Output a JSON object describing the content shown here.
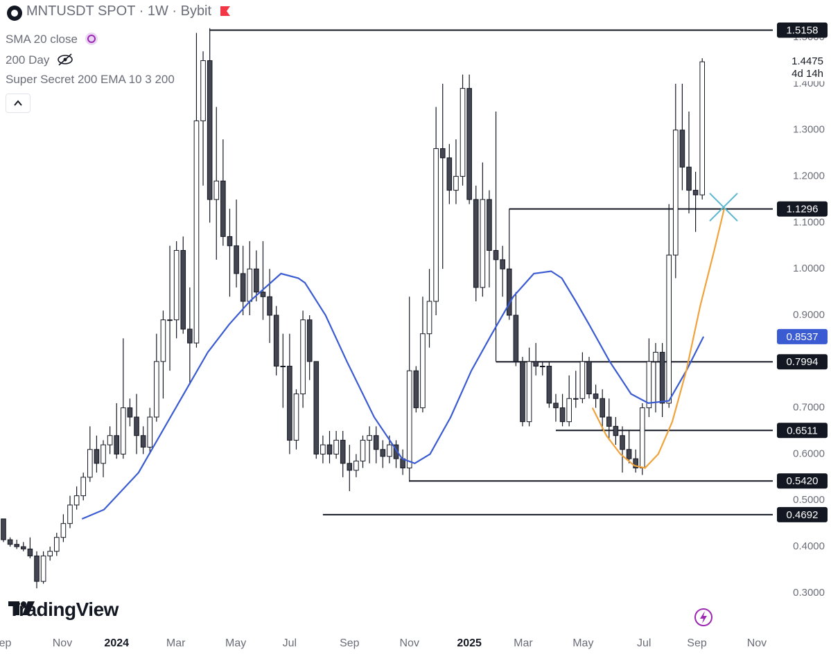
{
  "header": {
    "symbol": "MNTUSDT SPOT · 1W · Bybit",
    "indicators": [
      "SMA 20 close",
      "200 Day",
      "Super Secret 200 EMA 10 3 200"
    ],
    "logo": "TradingView"
  },
  "chart_data": {
    "type": "candlestick",
    "open": [
      0.46,
      0.415,
      0.405,
      0.4,
      0.395,
      0.38,
      0.325,
      0.38,
      0.39,
      0.42,
      0.45,
      0.49,
      0.51,
      0.55,
      0.61,
      0.58,
      0.62,
      0.64,
      0.6,
      0.7,
      0.68,
      0.64,
      0.615,
      0.68,
      0.8,
      0.89,
      0.89,
      1.04,
      0.87,
      0.84,
      1.32,
      1.45,
      1.15,
      1.19,
      1.07,
      1.05,
      0.99,
      0.93,
      1.0,
      0.95,
      0.94,
      0.9,
      0.79,
      0.79,
      0.63,
      0.73,
      0.89,
      0.8,
      0.6,
      0.62,
      0.6,
      0.63,
      0.58,
      0.565,
      0.585,
      0.63,
      0.64,
      0.61,
      0.595,
      0.62,
      0.59,
      0.57,
      0.78,
      0.7,
      0.86,
      0.93,
      1.26,
      1.24,
      1.17,
      1.2,
      1.39,
      1.15,
      0.96,
      1.15,
      1.04,
      1.02,
      1.0,
      0.9,
      0.8,
      0.67,
      0.8,
      0.79,
      0.79,
      0.71,
      0.7,
      0.67,
      0.72,
      0.72,
      0.8,
      0.73,
      0.72,
      0.68,
      0.66,
      0.64,
      0.61,
      0.59,
      0.57,
      0.7,
      0.8,
      0.82,
      0.71,
      1.03,
      1.3,
      1.22,
      1.17,
      1.16
    ],
    "high": [
      0.46,
      0.42,
      0.415,
      0.41,
      0.42,
      0.39,
      0.39,
      0.4,
      0.43,
      0.47,
      0.51,
      0.53,
      0.56,
      0.66,
      0.64,
      0.63,
      0.66,
      0.71,
      0.85,
      0.72,
      0.73,
      0.66,
      0.7,
      0.86,
      0.91,
      1.05,
      1.06,
      1.07,
      0.96,
      1.51,
      1.47,
      1.52,
      1.35,
      1.28,
      1.13,
      1.15,
      1.05,
      1.06,
      1.04,
      1.06,
      1.0,
      0.92,
      0.86,
      0.86,
      0.74,
      0.91,
      0.9,
      0.8,
      0.64,
      0.65,
      0.65,
      0.65,
      0.62,
      0.6,
      0.64,
      0.66,
      0.66,
      0.63,
      0.64,
      0.63,
      0.61,
      0.94,
      0.79,
      0.94,
      1.0,
      1.35,
      1.4,
      1.27,
      1.28,
      1.42,
      1.42,
      1.18,
      1.23,
      1.17,
      1.34,
      1.05,
      1.13,
      0.95,
      0.81,
      0.83,
      0.84,
      0.8,
      0.8,
      0.73,
      0.73,
      0.77,
      0.78,
      0.82,
      0.81,
      0.75,
      0.74,
      0.72,
      0.68,
      0.66,
      0.65,
      0.61,
      0.71,
      0.85,
      0.84,
      0.84,
      1.14,
      1.4,
      1.4,
      1.34,
      1.21,
      1.455
    ],
    "low": [
      0.41,
      0.4,
      0.395,
      0.39,
      0.375,
      0.31,
      0.32,
      0.37,
      0.38,
      0.41,
      0.44,
      0.48,
      0.5,
      0.54,
      0.56,
      0.55,
      0.6,
      0.59,
      0.59,
      0.66,
      0.6,
      0.6,
      0.6,
      0.67,
      0.72,
      0.78,
      0.85,
      0.86,
      0.75,
      0.83,
      1.18,
      1.1,
      1.02,
      1.05,
      0.94,
      0.96,
      0.9,
      0.9,
      0.93,
      0.89,
      0.84,
      0.77,
      0.7,
      0.6,
      0.61,
      0.7,
      0.76,
      0.59,
      0.58,
      0.58,
      0.59,
      0.55,
      0.52,
      0.55,
      0.57,
      0.58,
      0.58,
      0.57,
      0.58,
      0.57,
      0.555,
      0.54,
      0.69,
      0.69,
      0.83,
      0.9,
      1.0,
      1.14,
      1.14,
      1.18,
      1.14,
      0.93,
      0.94,
      0.96,
      0.8,
      0.94,
      0.89,
      0.79,
      0.66,
      0.66,
      0.77,
      0.77,
      0.7,
      0.67,
      0.66,
      0.66,
      0.7,
      0.71,
      0.72,
      0.7,
      0.65,
      0.63,
      0.62,
      0.56,
      0.58,
      0.56,
      0.555,
      0.68,
      0.69,
      0.68,
      0.7,
      0.98,
      1.17,
      1.12,
      1.08,
      1.15
    ],
    "close": [
      0.415,
      0.405,
      0.4,
      0.395,
      0.38,
      0.325,
      0.38,
      0.39,
      0.42,
      0.45,
      0.49,
      0.51,
      0.55,
      0.61,
      0.58,
      0.62,
      0.64,
      0.6,
      0.7,
      0.68,
      0.64,
      0.615,
      0.68,
      0.8,
      0.89,
      0.89,
      1.04,
      0.87,
      0.84,
      1.32,
      1.45,
      1.15,
      1.19,
      1.07,
      1.05,
      0.99,
      0.93,
      1.0,
      0.95,
      0.94,
      0.9,
      0.79,
      0.79,
      0.63,
      0.73,
      0.89,
      0.8,
      0.6,
      0.62,
      0.6,
      0.63,
      0.58,
      0.565,
      0.585,
      0.63,
      0.64,
      0.61,
      0.595,
      0.62,
      0.59,
      0.57,
      0.78,
      0.7,
      0.86,
      0.93,
      1.26,
      1.24,
      1.17,
      1.2,
      1.39,
      1.15,
      0.96,
      1.15,
      1.04,
      1.02,
      1.0,
      0.9,
      0.8,
      0.67,
      0.8,
      0.79,
      0.79,
      0.71,
      0.7,
      0.67,
      0.72,
      0.72,
      0.8,
      0.73,
      0.72,
      0.68,
      0.66,
      0.64,
      0.61,
      0.59,
      0.57,
      0.7,
      0.8,
      0.82,
      0.71,
      1.03,
      1.3,
      1.22,
      1.17,
      1.16,
      1.4475
    ],
    "up_color": "#ffffff",
    "down_color": "#434651",
    "border_color": "#131722",
    "countdown": "4d 14h",
    "lines": [
      {
        "color": "#3a5bd1",
        "x": [
          11.8,
          15.1,
          20.3,
          25.5,
          30.7,
          33.9,
          37,
          41.7,
          44.3,
          45.3,
          48.4,
          51.6,
          55.7,
          59.9,
          61.8,
          64.1,
          67.2,
          70.3,
          73.4,
          76.6,
          79.7,
          82.3,
          83.9,
          86,
          88,
          91.1,
          94.3,
          96.9,
          100,
          102.6,
          105.2
        ],
        "values": [
          0.46,
          0.48,
          0.56,
          0.69,
          0.82,
          0.88,
          0.93,
          0.99,
          0.98,
          0.97,
          0.9,
          0.8,
          0.68,
          0.59,
          0.58,
          0.6,
          0.68,
          0.78,
          0.86,
          0.94,
          0.99,
          0.995,
          0.98,
          0.93,
          0.88,
          0.8,
          0.73,
          0.71,
          0.715,
          0.78,
          0.8537
        ]
      },
      {
        "color": "#f0a23b",
        "x": [
          88.5,
          90.6,
          92.7,
          94.8,
          96.4,
          98.4,
          100.5,
          102.6,
          104.7,
          106.8,
          108.3
        ],
        "values": [
          0.7,
          0.64,
          0.6,
          0.575,
          0.57,
          0.6,
          0.67,
          0.78,
          0.92,
          1.04,
          1.13
        ]
      }
    ],
    "levels": [
      {
        "value": 1.5158,
        "from": 31
      },
      {
        "value": 1.1296,
        "from": 76
      },
      {
        "value": 0.7994,
        "from": 74
      },
      {
        "value": 0.6511,
        "from": 83
      },
      {
        "value": {
          "value": 0.542,
          "label": "0.5420"
        },
        "from": 61
      },
      {
        "value": 0.4692,
        "from": 48
      }
    ],
    "xlim": [
      -0.52,
      115.6
    ],
    "ylim": [
      0.219,
      1.581
    ],
    "xticks": [
      {
        "value": -0.3,
        "label": "Sep"
      },
      {
        "value": 8.85,
        "label": "Nov"
      },
      {
        "value": 17,
        "label": "2024"
      },
      {
        "value": 25.9,
        "label": "Mar"
      },
      {
        "value": 34.9,
        "label": "May"
      },
      {
        "value": 43,
        "label": "Jul"
      },
      {
        "value": 52,
        "label": "Sep"
      },
      {
        "value": 61,
        "label": "Nov"
      },
      {
        "value": 70,
        "label": "2025"
      },
      {
        "value": 78.1,
        "label": "Mar"
      },
      {
        "value": 87.1,
        "label": "May"
      },
      {
        "value": 96.25,
        "label": "Jul"
      },
      {
        "value": 104.2,
        "label": "Sep"
      },
      {
        "value": 113.2,
        "label": "Nov"
      }
    ],
    "yticks": [
      {
        "value": 0.3,
        "label": "0.3000"
      },
      {
        "value": 0.4,
        "label": "0.4000"
      },
      {
        "value": 0.5,
        "label": "0.5000"
      },
      {
        "value": 0.6,
        "label": "0.6000"
      },
      {
        "value": 0.7,
        "label": "0.7000"
      },
      {
        "value": 0.8,
        "label": "0.8000"
      },
      {
        "value": 0.9,
        "label": "0.9000"
      },
      {
        "value": 1.0,
        "label": "1.0000"
      },
      {
        "value": 1.1,
        "label": "1.1000"
      },
      {
        "value": 1.2,
        "label": "1.2000"
      },
      {
        "value": 1.3,
        "label": "1.3000"
      },
      {
        "value": 1.4,
        "label": "1.4000"
      },
      {
        "value": 1.5,
        "label": "1.5000"
      }
    ]
  }
}
